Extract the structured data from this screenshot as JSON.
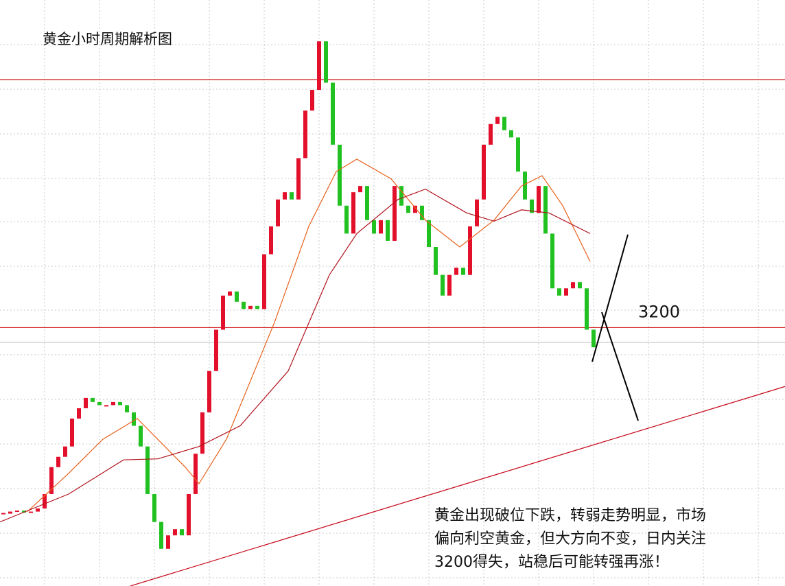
{
  "chart_data": {
    "type": "candlestick",
    "title": "黄金小时周期解析图",
    "annotation": [
      "黄金出现破位下跌，转弱走势明显，市场",
      "偏向利空黄金，但大方向不变，日内关注",
      "3200得失，站稳后可能转强再涨！"
    ],
    "ylim": [
      2950,
      3517
    ],
    "xlim": [
      0,
      114.4
    ],
    "up_color": "#e3102c",
    "down_color": "#22c122",
    "close": [
      3020,
      3022,
      3023,
      3021,
      3022,
      3025,
      3039,
      3065,
      3075,
      3085,
      3112,
      3122,
      3132,
      3128,
      3125,
      3125,
      3128,
      3125,
      3118,
      3105,
      3085,
      3039,
      3012,
      2986,
      2999,
      3005,
      2999,
      3039,
      3078,
      3118,
      3158,
      3198,
      3231,
      3235,
      3225,
      3218,
      3221,
      3218,
      3271,
      3298,
      3324,
      3331,
      3324,
      3364,
      3410,
      3430,
      3477,
      3437,
      3377,
      3318,
      3291,
      3331,
      3337,
      3304,
      3291,
      3304,
      3284,
      3337,
      3318,
      3311,
      3318,
      3304,
      3278,
      3251,
      3231,
      3251,
      3258,
      3251,
      3298,
      3324,
      3377,
      3397,
      3404,
      3391,
      3384,
      3351,
      3324,
      3311,
      3337,
      3291,
      3238,
      3231,
      3238,
      3244,
      3238,
      3198,
      3181
    ],
    "series": [
      {
        "color": "#e8601a",
        "x": [
          4,
          10,
          15,
          20,
          27,
          29,
          33,
          40,
          45,
          49,
          52,
          57,
          62,
          67,
          72,
          76,
          79,
          82,
          86
        ],
        "values": [
          3022,
          3059,
          3092,
          3112,
          3065,
          3049,
          3092,
          3205,
          3298,
          3351,
          3363,
          3344,
          3304,
          3278,
          3304,
          3337,
          3347,
          3318,
          3264
        ]
      },
      {
        "color": "#b0101a",
        "x": [
          0,
          10,
          18,
          23,
          29,
          35,
          42,
          48,
          52,
          58,
          62,
          68,
          72,
          76,
          80,
          86
        ],
        "values": [
          3012,
          3039,
          3072,
          3073,
          3085,
          3105,
          3158,
          3251,
          3291,
          3324,
          3334,
          3311,
          3303,
          3314,
          3311,
          3291
        ]
      }
    ],
    "hlines": [
      {
        "value": 3440
      },
      {
        "value": 3200,
        "label": "3200"
      }
    ],
    "trend_line": {
      "color": "#c81020",
      "x": [
        19,
        114.4
      ],
      "values": [
        2950,
        3143
      ]
    },
    "projection": [
      {
        "color": "#000000",
        "x": [
          86.3,
          91.5
        ],
        "values": [
          3167,
          3290
        ]
      },
      {
        "color": "#000000",
        "x": [
          87.7,
          93
        ],
        "values": [
          3215,
          3110
        ]
      }
    ]
  }
}
